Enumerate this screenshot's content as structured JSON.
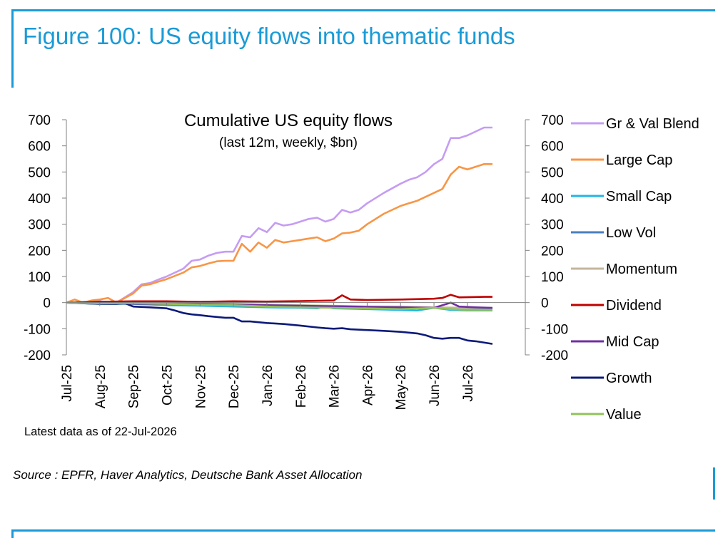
{
  "figure": {
    "title": "Figure 100: US equity flows into thematic funds",
    "note": "Latest data as of 22-Jul-2026",
    "source": "Source : EPFR, Haver Analytics, Deutsche Bank Asset Allocation"
  },
  "chart_data": {
    "type": "line",
    "title": "Cumulative US equity flows",
    "subtitle": "(last 12m, weekly, $bn)",
    "xlabel": "",
    "ylabel": "",
    "ylim": [
      -200,
      700
    ],
    "yticks": [
      700,
      600,
      500,
      400,
      300,
      200,
      100,
      0,
      -100,
      -200
    ],
    "y_tick_labels": [
      "700",
      "600",
      "500",
      "400",
      "300",
      "200",
      "100",
      "0",
      "-100",
      "-200"
    ],
    "secondary_y_tick_labels": [
      "700",
      "600",
      "500",
      "400",
      "300",
      "200",
      "100",
      "0",
      "-100",
      "-200"
    ],
    "grid": false,
    "legend_position": "right",
    "x_tick_labels": [
      "Jul-25",
      "Aug-25",
      "Sep-25",
      "Oct-25",
      "Nov-25",
      "Dec-25",
      "Jan-26",
      "Feb-26",
      "Mar-26",
      "Apr-26",
      "May-26",
      "Jun-26",
      "Jul-26"
    ],
    "x_weeks": [
      0,
      4,
      8,
      12,
      16,
      20,
      24,
      28,
      32,
      36,
      40,
      44,
      48
    ],
    "series": [
      {
        "name": "Gr & Val Blend",
        "color": "#c59cf2",
        "points": [
          [
            0,
            0
          ],
          [
            4,
            5
          ],
          [
            6,
            0
          ],
          [
            8,
            40
          ],
          [
            9,
            70
          ],
          [
            10,
            75
          ],
          [
            11,
            88
          ],
          [
            12,
            100
          ],
          [
            14,
            130
          ],
          [
            15,
            160
          ],
          [
            16,
            165
          ],
          [
            17,
            180
          ],
          [
            18,
            190
          ],
          [
            19,
            195
          ],
          [
            20,
            195
          ],
          [
            21,
            255
          ],
          [
            22,
            250
          ],
          [
            23,
            285
          ],
          [
            24,
            270
          ],
          [
            25,
            305
          ],
          [
            26,
            295
          ],
          [
            27,
            300
          ],
          [
            28,
            310
          ],
          [
            29,
            320
          ],
          [
            30,
            325
          ],
          [
            31,
            310
          ],
          [
            32,
            320
          ],
          [
            33,
            355
          ],
          [
            34,
            345
          ],
          [
            35,
            355
          ],
          [
            36,
            380
          ],
          [
            38,
            420
          ],
          [
            40,
            455
          ],
          [
            41,
            470
          ],
          [
            42,
            480
          ],
          [
            43,
            500
          ],
          [
            44,
            530
          ],
          [
            45,
            550
          ],
          [
            46,
            630
          ],
          [
            47,
            630
          ],
          [
            48,
            640
          ],
          [
            49,
            655
          ],
          [
            50,
            670
          ],
          [
            51,
            670
          ]
        ]
      },
      {
        "name": "Large Cap",
        "color": "#f79646",
        "points": [
          [
            0,
            0
          ],
          [
            1,
            12
          ],
          [
            2,
            0
          ],
          [
            3,
            8
          ],
          [
            4,
            12
          ],
          [
            5,
            18
          ],
          [
            6,
            0
          ],
          [
            8,
            35
          ],
          [
            9,
            65
          ],
          [
            10,
            70
          ],
          [
            11,
            80
          ],
          [
            12,
            90
          ],
          [
            14,
            115
          ],
          [
            15,
            135
          ],
          [
            16,
            140
          ],
          [
            17,
            150
          ],
          [
            18,
            158
          ],
          [
            19,
            160
          ],
          [
            20,
            160
          ],
          [
            21,
            225
          ],
          [
            22,
            195
          ],
          [
            23,
            230
          ],
          [
            24,
            210
          ],
          [
            25,
            240
          ],
          [
            26,
            230
          ],
          [
            27,
            235
          ],
          [
            28,
            240
          ],
          [
            29,
            245
          ],
          [
            30,
            250
          ],
          [
            31,
            235
          ],
          [
            32,
            245
          ],
          [
            33,
            265
          ],
          [
            34,
            268
          ],
          [
            35,
            275
          ],
          [
            36,
            300
          ],
          [
            38,
            340
          ],
          [
            40,
            370
          ],
          [
            41,
            380
          ],
          [
            42,
            390
          ],
          [
            43,
            405
          ],
          [
            44,
            420
          ],
          [
            45,
            435
          ],
          [
            46,
            490
          ],
          [
            47,
            520
          ],
          [
            48,
            510
          ],
          [
            49,
            520
          ],
          [
            50,
            530
          ],
          [
            51,
            530
          ]
        ]
      },
      {
        "name": "Small Cap",
        "color": "#21b5e6",
        "points": [
          [
            0,
            0
          ],
          [
            4,
            -5
          ],
          [
            8,
            -5
          ],
          [
            12,
            -10
          ],
          [
            16,
            -12
          ],
          [
            20,
            -15
          ],
          [
            24,
            -18
          ],
          [
            28,
            -20
          ],
          [
            30,
            -22
          ],
          [
            31,
            -15
          ],
          [
            32,
            -22
          ],
          [
            36,
            -25
          ],
          [
            40,
            -28
          ],
          [
            42,
            -30
          ],
          [
            44,
            -20
          ],
          [
            46,
            -28
          ],
          [
            48,
            -30
          ],
          [
            51,
            -30
          ]
        ]
      },
      {
        "name": "Low Vol",
        "color": "#4a7ebf",
        "points": [
          [
            0,
            0
          ],
          [
            8,
            -5
          ],
          [
            16,
            -8
          ],
          [
            20,
            -10
          ],
          [
            24,
            -12
          ],
          [
            28,
            -12
          ],
          [
            32,
            -15
          ],
          [
            36,
            -18
          ],
          [
            40,
            -20
          ],
          [
            44,
            -20
          ],
          [
            48,
            -22
          ],
          [
            51,
            -25
          ]
        ]
      },
      {
        "name": "Momentum",
        "color": "#c4b59b",
        "points": [
          [
            0,
            0
          ],
          [
            6,
            -3
          ],
          [
            8,
            2
          ],
          [
            12,
            0
          ],
          [
            16,
            -2
          ],
          [
            20,
            -5
          ],
          [
            24,
            -8
          ],
          [
            28,
            -10
          ],
          [
            32,
            -12
          ],
          [
            36,
            -15
          ],
          [
            40,
            -15
          ],
          [
            44,
            -18
          ],
          [
            48,
            -20
          ],
          [
            51,
            -20
          ]
        ]
      },
      {
        "name": "Dividend",
        "color": "#c00000",
        "points": [
          [
            0,
            0
          ],
          [
            4,
            3
          ],
          [
            8,
            5
          ],
          [
            12,
            5
          ],
          [
            16,
            3
          ],
          [
            20,
            5
          ],
          [
            24,
            4
          ],
          [
            28,
            6
          ],
          [
            32,
            8
          ],
          [
            33,
            28
          ],
          [
            34,
            12
          ],
          [
            36,
            10
          ],
          [
            40,
            12
          ],
          [
            44,
            15
          ],
          [
            45,
            18
          ],
          [
            46,
            30
          ],
          [
            47,
            20
          ],
          [
            50,
            22
          ],
          [
            51,
            22
          ]
        ]
      },
      {
        "name": "Mid Cap",
        "color": "#7030a0",
        "points": [
          [
            0,
            0
          ],
          [
            4,
            -2
          ],
          [
            8,
            -4
          ],
          [
            12,
            -5
          ],
          [
            16,
            -5
          ],
          [
            20,
            -8
          ],
          [
            24,
            -10
          ],
          [
            28,
            -12
          ],
          [
            32,
            -14
          ],
          [
            36,
            -16
          ],
          [
            40,
            -18
          ],
          [
            44,
            -20
          ],
          [
            46,
            0
          ],
          [
            47,
            -15
          ],
          [
            49,
            -18
          ],
          [
            51,
            -20
          ]
        ]
      },
      {
        "name": "Growth",
        "color": "#0c1a7a",
        "points": [
          [
            0,
            0
          ],
          [
            4,
            -5
          ],
          [
            6,
            -5
          ],
          [
            7,
            -2
          ],
          [
            8,
            -15
          ],
          [
            10,
            -18
          ],
          [
            12,
            -22
          ],
          [
            13,
            -30
          ],
          [
            14,
            -40
          ],
          [
            15,
            -45
          ],
          [
            16,
            -48
          ],
          [
            17,
            -52
          ],
          [
            18,
            -55
          ],
          [
            19,
            -58
          ],
          [
            20,
            -58
          ],
          [
            21,
            -72
          ],
          [
            22,
            -72
          ],
          [
            23,
            -75
          ],
          [
            24,
            -78
          ],
          [
            26,
            -82
          ],
          [
            28,
            -88
          ],
          [
            30,
            -95
          ],
          [
            31,
            -98
          ],
          [
            32,
            -100
          ],
          [
            33,
            -98
          ],
          [
            34,
            -102
          ],
          [
            36,
            -105
          ],
          [
            38,
            -108
          ],
          [
            40,
            -112
          ],
          [
            42,
            -118
          ],
          [
            43,
            -125
          ],
          [
            44,
            -135
          ],
          [
            45,
            -138
          ],
          [
            46,
            -135
          ],
          [
            47,
            -135
          ],
          [
            48,
            -145
          ],
          [
            49,
            -148
          ],
          [
            51,
            -158
          ]
        ]
      },
      {
        "name": "Value",
        "color": "#92c25a",
        "points": [
          [
            0,
            0
          ],
          [
            4,
            -3
          ],
          [
            8,
            -2
          ],
          [
            12,
            -5
          ],
          [
            16,
            -8
          ],
          [
            20,
            -10
          ],
          [
            24,
            -15
          ],
          [
            28,
            -18
          ],
          [
            32,
            -20
          ],
          [
            36,
            -22
          ],
          [
            40,
            -25
          ],
          [
            44,
            -20
          ],
          [
            46,
            -25
          ],
          [
            48,
            -28
          ],
          [
            51,
            -28
          ]
        ]
      }
    ]
  }
}
